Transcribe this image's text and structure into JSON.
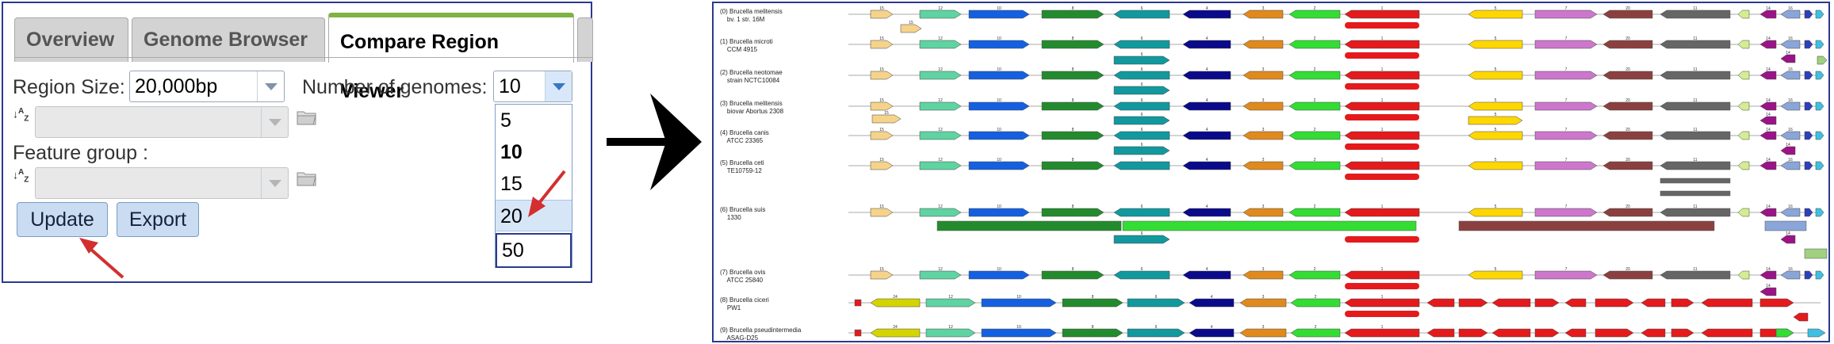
{
  "tabs": [
    {
      "label": "Overview",
      "active": false
    },
    {
      "label": "Genome Browser",
      "active": false
    },
    {
      "label": "Compare Region Viewer",
      "active": true
    }
  ],
  "region_size": {
    "label": "Region Size:",
    "value": "20,000bp"
  },
  "num_genomes": {
    "label": "Number of genomes:",
    "value": "10",
    "options": [
      "5",
      "10",
      "15",
      "20",
      "50"
    ]
  },
  "feature_group": {
    "label": "Feature group :"
  },
  "buttons": {
    "update": "Update",
    "export": "Export"
  },
  "colors": {
    "panel_border": "#2b3990",
    "tab_active_accent": "#7cb342",
    "button_bg": "#c9dcf2",
    "annotation_arrow": "#d32f2f"
  },
  "genomes": [
    {
      "index": "(0)",
      "name": "Brucella melitensis",
      "strain": "bv. 1 str. 16M"
    },
    {
      "index": "(1)",
      "name": "Brucella microti",
      "strain": "CCM 4915"
    },
    {
      "index": "(2)",
      "name": "Brucella neotomae",
      "strain": "strain NCTC10084"
    },
    {
      "index": "(3)",
      "name": "Brucella melitensis",
      "strain": "biovar Abortus 2308"
    },
    {
      "index": "(4)",
      "name": "Brucella canis",
      "strain": "ATCC 23365"
    },
    {
      "index": "(5)",
      "name": "Brucella ceti",
      "strain": "TE10759-12"
    },
    {
      "index": "(6)",
      "name": "Brucella suis",
      "strain": "1330"
    },
    {
      "index": "(7)",
      "name": "Brucella ovis",
      "strain": "ATCC 25840"
    },
    {
      "index": "(8)",
      "name": "Brucella ciceri",
      "strain": "PW1"
    },
    {
      "index": "(9)",
      "name": "Brucella pseudintermedia",
      "strain": "ASAG-D25"
    }
  ],
  "gene_colors": {
    "1": "#e41a1c",
    "2": "#33dd33",
    "3": "#e08a1e",
    "4": "#0a0a8a",
    "5": "#ffd700",
    "6": "#11999e",
    "7": "#cc77cc",
    "8": "#238b2d",
    "10": "#1560e0",
    "11": "#666666",
    "12": "#5fd3a2",
    "13": "#d4ed91",
    "14": "#9b1487",
    "15": "#f5d38a",
    "16": "#8aa5d8",
    "17": "#40c0e0",
    "18": "#2e3fb8",
    "19": "#a0d080",
    "20": "#8b4040",
    "24": "#d4d400",
    "25": "#ffc0cb",
    "26": "#e41a1c"
  }
}
